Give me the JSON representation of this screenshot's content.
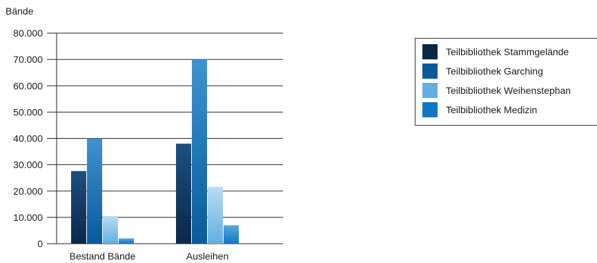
{
  "chart_data": {
    "type": "bar",
    "unit_label": "Bände",
    "categories": [
      "Bestand Bände",
      "Ausleihen"
    ],
    "ylim": [
      0,
      80000
    ],
    "yticks": [
      "0",
      "10.000",
      "20.000",
      "30.000",
      "40.000",
      "50.000",
      "60.000",
      "70.000",
      "80.000"
    ],
    "grid": true,
    "legend_position": "right",
    "series": [
      {
        "name": "Teilbibliothek Stammgelände",
        "values": [
          27600,
          38000
        ],
        "color": "#0b2747",
        "color_light": "#1d4f82"
      },
      {
        "name": "Teilbibliothek Garching",
        "values": [
          40000,
          70000
        ],
        "color": "#075a9c",
        "color_light": "#3e93cf"
      },
      {
        "name": "Teilbibliothek Weihenstephan",
        "values": [
          10500,
          21600
        ],
        "color": "#62afe0",
        "color_light": "#b9dcf3"
      },
      {
        "name": "Teilbibliothek Medizin",
        "values": [
          2000,
          7000
        ],
        "color": "#1177c2",
        "color_light": "#56a9e2"
      }
    ]
  }
}
